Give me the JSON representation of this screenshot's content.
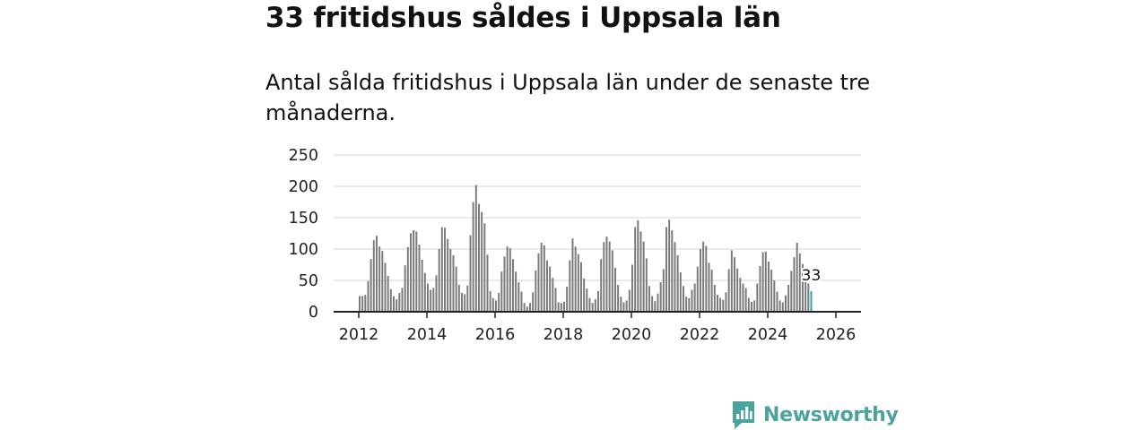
{
  "header": {
    "title": "33 fritidshus såldes i Uppsala län",
    "subtitle": "Antal sålda fritidshus i Uppsala län under de senaste tre månaderna."
  },
  "brand": {
    "name": "Newsworthy",
    "color": "#4aa39d"
  },
  "colors": {
    "bar": "#7a7a7c",
    "highlight": "#2aa79f",
    "grid": "#dddddd",
    "axis": "#222222"
  },
  "chart_data": {
    "type": "bar",
    "title": "33 fritidshus såldes i Uppsala län",
    "subtitle": "Antal sålda fritidshus i Uppsala län under de senaste tre månaderna.",
    "xlabel": "",
    "ylabel": "",
    "ylim": [
      0,
      250
    ],
    "yticks": [
      0,
      50,
      100,
      150,
      200,
      250
    ],
    "xticks": [
      "2012",
      "2014",
      "2016",
      "2018",
      "2020",
      "2022",
      "2024",
      "2026"
    ],
    "grid": true,
    "start": "2012-01",
    "frequency": "monthly",
    "values": [
      25,
      25,
      27,
      49,
      84,
      114,
      121,
      104,
      97,
      78,
      57,
      36,
      25,
      20,
      30,
      38,
      74,
      103,
      125,
      130,
      128,
      107,
      83,
      62,
      45,
      35,
      38,
      58,
      100,
      135,
      134,
      116,
      100,
      90,
      72,
      43,
      30,
      28,
      42,
      122,
      175,
      202,
      172,
      159,
      141,
      91,
      33,
      22,
      18,
      30,
      64,
      88,
      104,
      101,
      84,
      64,
      47,
      32,
      14,
      8,
      14,
      31,
      66,
      93,
      110,
      106,
      82,
      72,
      54,
      38,
      15,
      14,
      16,
      40,
      82,
      117,
      104,
      92,
      79,
      53,
      37,
      22,
      14,
      20,
      33,
      84,
      111,
      120,
      112,
      98,
      70,
      43,
      24,
      15,
      18,
      35,
      75,
      135,
      146,
      128,
      112,
      85,
      41,
      25,
      17,
      29,
      47,
      68,
      135,
      147,
      130,
      111,
      90,
      63,
      41,
      24,
      22,
      35,
      45,
      72,
      100,
      112,
      105,
      78,
      67,
      43,
      27,
      22,
      19,
      31,
      68,
      98,
      87,
      69,
      54,
      45,
      38,
      22,
      16,
      18,
      45,
      73,
      95,
      96,
      80,
      67,
      50,
      32,
      18,
      15,
      26,
      43,
      65,
      87,
      110,
      93,
      76,
      52,
      45,
      33
    ],
    "highlight_last": true,
    "annotation": {
      "label": "33",
      "value": 33
    }
  }
}
